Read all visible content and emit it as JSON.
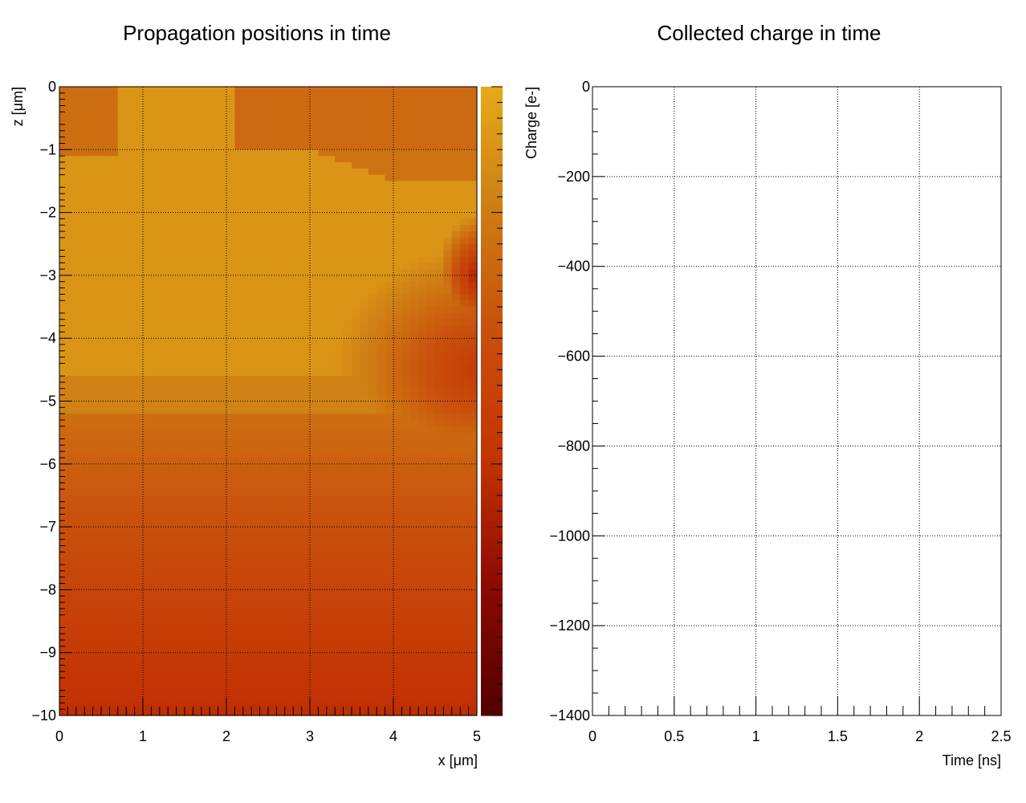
{
  "chart_data": [
    {
      "type": "heatmap",
      "title": "Propagation positions in time",
      "xlabel": "x [μm]",
      "ylabel": "z [μm]",
      "xlim": [
        0,
        5
      ],
      "ylim": [
        -10,
        0
      ],
      "x_ticks": [
        "0",
        "1",
        "2",
        "3",
        "4",
        "5"
      ],
      "y_ticks": [
        "0",
        "−1",
        "−2",
        "−3",
        "−4",
        "−5",
        "−6",
        "−7",
        "−8",
        "−9",
        "−10"
      ],
      "grid": true,
      "colorbar": true,
      "palette": [
        "#ecb219",
        "#d08214",
        "#c9510d",
        "#c43404",
        "#8b0a00",
        "#520000"
      ]
    },
    {
      "type": "line",
      "title": "Collected charge in time",
      "xlabel": "Time [ns]",
      "ylabel": "Charge [e-]",
      "xlim": [
        0,
        2.5
      ],
      "ylim": [
        -1400,
        0
      ],
      "x_ticks": [
        "0",
        "0.5",
        "1",
        "1.5",
        "2",
        "2.5"
      ],
      "y_ticks": [
        "0",
        "−200",
        "−400",
        "−600",
        "−800",
        "−1000",
        "−1200",
        "−1400"
      ],
      "grid": true,
      "series": []
    }
  ]
}
